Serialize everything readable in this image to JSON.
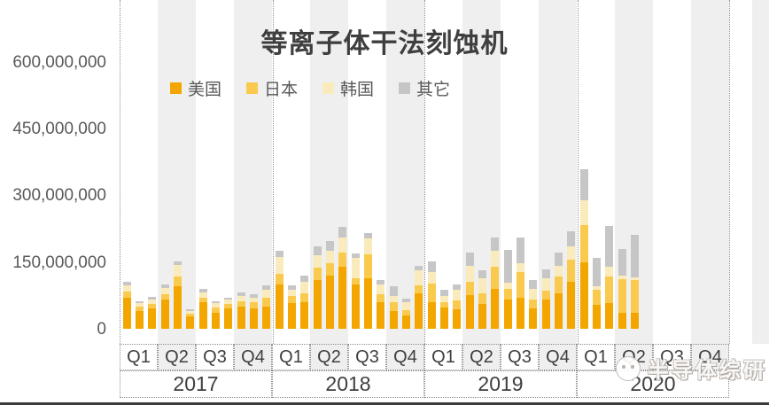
{
  "chart_data": {
    "type": "bar",
    "stacked": true,
    "title": "等离子体干法刻蚀机",
    "xlabel": "",
    "ylabel": "",
    "ylim": [
      0,
      600000000
    ],
    "grid": false,
    "legend_position": "top",
    "y_ticks": [
      "600,000,000",
      "450,000,000",
      "300,000,000",
      "150,000,000",
      "0"
    ],
    "x": [
      "2017-01",
      "2017-02",
      "2017-03",
      "2017-04",
      "2017-05",
      "2017-06",
      "2017-07",
      "2017-08",
      "2017-09",
      "2017-10",
      "2017-11",
      "2017-12",
      "2018-01",
      "2018-02",
      "2018-03",
      "2018-04",
      "2018-05",
      "2018-06",
      "2018-07",
      "2018-08",
      "2018-09",
      "2018-10",
      "2018-11",
      "2018-12",
      "2019-01",
      "2019-02",
      "2019-03",
      "2019-04",
      "2019-05",
      "2019-06",
      "2019-07",
      "2019-08",
      "2019-09",
      "2019-10",
      "2019-11",
      "2019-12",
      "2020-01",
      "2020-02",
      "2020-03",
      "2020-04",
      "2020-05"
    ],
    "series": [
      {
        "name": "美国",
        "key": "usa",
        "color": "#F3A600",
        "values": [
          70000000,
          40000000,
          45000000,
          65000000,
          95000000,
          28000000,
          60000000,
          35000000,
          45000000,
          50000000,
          45000000,
          50000000,
          100000000,
          58000000,
          60000000,
          110000000,
          120000000,
          140000000,
          100000000,
          114000000,
          60000000,
          40000000,
          30000000,
          80000000,
          60000000,
          47000000,
          43000000,
          75000000,
          55000000,
          90000000,
          66000000,
          70000000,
          46000000,
          66000000,
          80000000,
          105000000,
          150000000,
          53000000,
          57000000,
          36000000,
          35000000
        ]
      },
      {
        "name": "日本",
        "key": "japan",
        "color": "#FACA4E",
        "values": [
          14000000,
          10000000,
          10000000,
          12000000,
          22000000,
          5000000,
          10000000,
          12000000,
          10000000,
          12000000,
          15000000,
          20000000,
          23000000,
          15000000,
          19000000,
          28000000,
          28000000,
          31000000,
          14000000,
          53000000,
          18000000,
          20000000,
          11000000,
          17000000,
          41000000,
          12000000,
          20000000,
          30000000,
          25000000,
          50000000,
          24000000,
          57000000,
          20000000,
          20000000,
          37000000,
          50000000,
          84000000,
          34000000,
          60000000,
          76000000,
          74000000
        ]
      },
      {
        "name": "韩国",
        "key": "korea",
        "color": "#FAEBBC",
        "values": [
          14000000,
          8000000,
          10000000,
          15000000,
          26000000,
          6000000,
          12000000,
          10000000,
          10000000,
          12000000,
          10000000,
          18000000,
          38000000,
          15000000,
          27000000,
          28000000,
          28000000,
          35000000,
          46000000,
          36000000,
          22000000,
          13000000,
          18000000,
          34000000,
          26000000,
          15000000,
          25000000,
          36000000,
          34000000,
          35000000,
          14000000,
          20000000,
          24000000,
          28000000,
          24000000,
          30000000,
          56000000,
          8000000,
          22000000,
          7000000,
          7000000
        ]
      },
      {
        "name": "其它",
        "key": "others",
        "color": "#C6C6C6",
        "values": [
          7000000,
          4000000,
          6000000,
          7000000,
          8000000,
          4000000,
          7000000,
          5000000,
          5000000,
          7000000,
          7000000,
          9000000,
          15000000,
          9000000,
          13000000,
          19000000,
          22000000,
          24000000,
          10000000,
          12000000,
          10000000,
          22000000,
          9000000,
          10000000,
          24000000,
          14000000,
          12000000,
          30000000,
          17000000,
          30000000,
          74000000,
          58000000,
          20000000,
          20000000,
          30000000,
          34000000,
          68000000,
          64000000,
          93000000,
          61000000,
          95000000
        ]
      }
    ]
  },
  "x_axis": {
    "quarters": [
      "Q1",
      "Q2",
      "Q3",
      "Q4"
    ],
    "years": [
      "2017",
      "2018",
      "2019",
      "2020"
    ]
  },
  "watermark": {
    "text": "半导体综研"
  }
}
